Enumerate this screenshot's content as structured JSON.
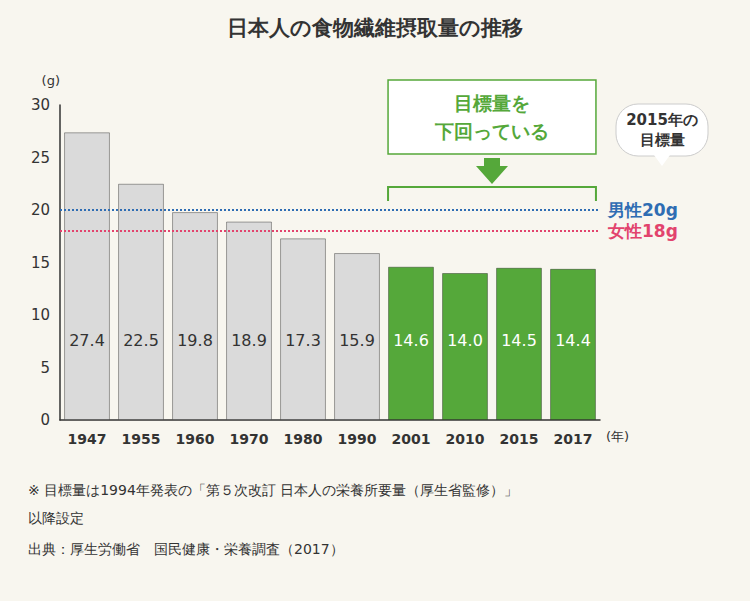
{
  "chart_data": {
    "type": "bar",
    "title": "日本人の食物繊維摂取量の推移",
    "y_label": "(g)",
    "x_label": "(年)",
    "categories": [
      "1947",
      "1955",
      "1960",
      "1970",
      "1980",
      "1990",
      "2001",
      "2010",
      "2015",
      "2017"
    ],
    "values": [
      27.4,
      22.5,
      19.8,
      18.9,
      17.3,
      15.9,
      14.6,
      14.0,
      14.5,
      14.4
    ],
    "value_labels": [
      "27.4",
      "22.5",
      "19.8",
      "18.9",
      "17.3",
      "15.9",
      "14.6",
      "14.0",
      "14.5",
      "14.4"
    ],
    "colors": [
      "#dadada",
      "#dadada",
      "#dadada",
      "#dadada",
      "#dadada",
      "#dadada",
      "#55a83a",
      "#55a83a",
      "#55a83a",
      "#55a83a"
    ],
    "ylim": [
      0,
      30
    ],
    "yticks": [
      0,
      5,
      10,
      15,
      20,
      25,
      30
    ],
    "grid": false,
    "data_labels": true,
    "reference_lines": [
      {
        "value": 20,
        "label": "男性20g",
        "color": "#2f6db3",
        "line_style": "dotted"
      },
      {
        "value": 18,
        "label": "女性18g",
        "color": "#e2436d",
        "line_style": "dotted"
      }
    ],
    "annotations": {
      "highlight": {
        "text": [
          "目標量を",
          "下回っている"
        ],
        "from": "2001",
        "to": "2017",
        "color": "#55a83a"
      },
      "target_note": [
        "2015年の",
        "目標量"
      ]
    },
    "notes": [
      "※ 目標量は1994年発表の「第５次改訂 日本人の栄養所要量（厚生省監修）」",
      "以降設定",
      "出典：厚生労働省　国民健康・栄養調査（2017）"
    ]
  }
}
